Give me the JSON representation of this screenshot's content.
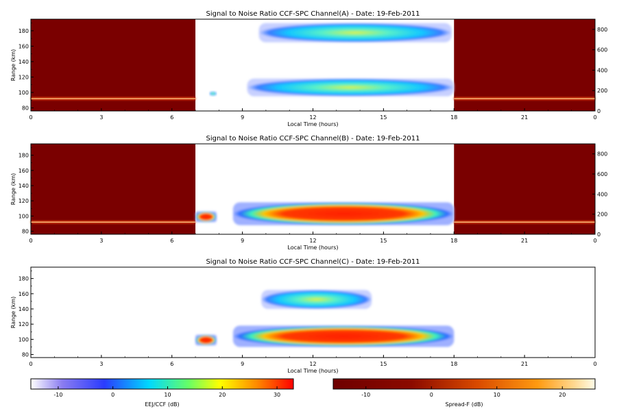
{
  "chart_data": [
    {
      "type": "heatmap",
      "title": "Signal to Noise Ratio CCF-SPC Channel(A) - Date: 19-Feb-2011",
      "xlabel": "Local Time (hours)",
      "ylabel": "Range (km)",
      "xlim": [
        0,
        24
      ],
      "ylim": [
        76,
        195
      ],
      "x_ticks": [
        "0",
        "3",
        "6",
        "9",
        "12",
        "15",
        "18",
        "21",
        "0"
      ],
      "y_ticks": [
        "80",
        "100",
        "120",
        "140",
        "160",
        "180"
      ],
      "y2_lim": [
        0,
        900
      ],
      "y2_ticks": [
        "0",
        "200",
        "400",
        "600",
        "800"
      ],
      "spread_f_windows": [
        [
          0,
          7
        ],
        [
          18,
          24
        ]
      ],
      "spread_f_trace_range_km": 92,
      "echo_regions": [
        {
          "t_start": 9.7,
          "t_end": 17.9,
          "range_km_min": 165,
          "range_km_max": 190,
          "peak_db": 12
        },
        {
          "t_start": 9.2,
          "t_end": 18,
          "range_km_min": 95,
          "range_km_max": 118,
          "peak_db": 16
        },
        {
          "t_start": 7.6,
          "t_end": 7.9,
          "range_km_min": 96,
          "range_km_max": 101,
          "peak_db": 6
        }
      ]
    },
    {
      "type": "heatmap",
      "title": "Signal to Noise Ratio CCF-SPC Channel(B) - Date: 19-Feb-2011",
      "xlabel": "Local Time (hours)",
      "ylabel": "Range (km)",
      "xlim": [
        0,
        24
      ],
      "ylim": [
        76,
        195
      ],
      "x_ticks": [
        "0",
        "3",
        "6",
        "9",
        "12",
        "15",
        "18",
        "21",
        "0"
      ],
      "y_ticks": [
        "80",
        "100",
        "120",
        "140",
        "160",
        "180"
      ],
      "y2_lim": [
        0,
        900
      ],
      "y2_ticks": [
        "0",
        "200",
        "400",
        "600",
        "800"
      ],
      "spread_f_windows": [
        [
          0,
          7
        ],
        [
          18,
          24
        ]
      ],
      "spread_f_trace_range_km": 92,
      "echo_regions": [
        {
          "t_start": 8.6,
          "t_end": 18,
          "range_km_min": 88,
          "range_km_max": 118,
          "peak_db": 30
        },
        {
          "t_start": 7,
          "t_end": 7.9,
          "range_km_min": 92,
          "range_km_max": 106,
          "peak_db": 22
        }
      ]
    },
    {
      "type": "heatmap",
      "title": "Signal to Noise Ratio CCF-SPC Channel(C) - Date: 19-Feb-2011",
      "xlabel": "Local Time (hours)",
      "ylabel": "Range (km)",
      "xlim": [
        0,
        24
      ],
      "ylim": [
        76,
        195
      ],
      "x_ticks": [
        "0",
        "3",
        "6",
        "9",
        "12",
        "15",
        "18",
        "21",
        "0"
      ],
      "y_ticks": [
        "80",
        "100",
        "120",
        "140",
        "160",
        "180"
      ],
      "spread_f_windows": [],
      "echo_regions": [
        {
          "t_start": 8.6,
          "t_end": 18,
          "range_km_min": 90,
          "range_km_max": 118,
          "peak_db": 30
        },
        {
          "t_start": 7,
          "t_end": 7.9,
          "range_km_min": 92,
          "range_km_max": 106,
          "peak_db": 25
        },
        {
          "t_start": 9.8,
          "t_end": 14.5,
          "range_km_min": 140,
          "range_km_max": 165,
          "peak_db": 6
        }
      ]
    }
  ],
  "colorbars": [
    {
      "label": "EEJ/CCF (dB)",
      "range": [
        -15,
        33
      ],
      "ticks": [
        "-10",
        "0",
        "10",
        "20",
        "30"
      ],
      "colormap": "jet"
    },
    {
      "label": "Spread-F (dB)",
      "range": [
        -15,
        25
      ],
      "ticks": [
        "-10",
        "0",
        "10",
        "20"
      ],
      "colormap": "hot"
    }
  ],
  "colors": {
    "background": "#ffffff",
    "spread_f_background": "#7a0000",
    "echo_low": "#2a9bd7",
    "echo_high": "#ff2a00"
  }
}
